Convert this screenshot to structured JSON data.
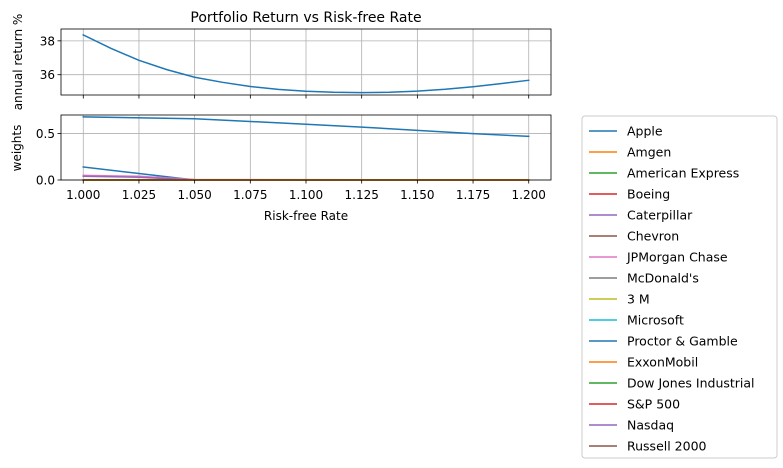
{
  "chart_data": [
    {
      "type": "line",
      "title": "Portfolio Return vs Risk-free Rate",
      "xlabel": "",
      "ylabel": "annual return %",
      "xlim": [
        0.99,
        1.21
      ],
      "ylim": [
        34.8,
        38.7
      ],
      "grid": true,
      "x_ticks": [
        1.0,
        1.025,
        1.05,
        1.075,
        1.1,
        1.125,
        1.15,
        1.175,
        1.2
      ],
      "y_ticks": [
        36,
        38
      ],
      "y_tick_labels": [
        "36",
        "38"
      ],
      "series": [
        {
          "color": "#1f77b4",
          "x": [
            1.0,
            1.0125,
            1.025,
            1.0375,
            1.05,
            1.0625,
            1.075,
            1.0875,
            1.1,
            1.1125,
            1.125,
            1.1375,
            1.15,
            1.1625,
            1.175,
            1.1875,
            1.2
          ],
          "y": [
            38.35,
            37.55,
            36.85,
            36.3,
            35.85,
            35.55,
            35.3,
            35.13,
            35.02,
            34.96,
            34.94,
            34.96,
            35.03,
            35.14,
            35.29,
            35.47,
            35.67
          ]
        }
      ]
    },
    {
      "type": "line",
      "title": "",
      "xlabel": "Risk-free Rate",
      "ylabel": "weights",
      "xlim": [
        0.99,
        1.21
      ],
      "ylim": [
        0.0,
        0.7
      ],
      "grid": true,
      "x_ticks": [
        1.0,
        1.025,
        1.05,
        1.075,
        1.1,
        1.125,
        1.15,
        1.175,
        1.2
      ],
      "x_tick_labels": [
        "1.000",
        "1.025",
        "1.050",
        "1.075",
        "1.100",
        "1.125",
        "1.150",
        "1.175",
        "1.200"
      ],
      "y_ticks": [
        0.0,
        0.5
      ],
      "y_tick_labels": [
        "0.0",
        "0.5"
      ],
      "legend_position": "outside-right",
      "series": [
        {
          "name": "Apple",
          "color": "#1f77b4",
          "x": [
            1.0,
            1.05,
            1.075,
            1.1,
            1.125,
            1.15,
            1.175,
            1.2
          ],
          "y": [
            0.68,
            0.66,
            0.63,
            0.6,
            0.57,
            0.535,
            0.5,
            0.47
          ]
        },
        {
          "name": "Amgen",
          "color": "#ff7f0e",
          "x": [
            1.0,
            1.2
          ],
          "y": [
            0.0,
            0.0
          ]
        },
        {
          "name": "American Express",
          "color": "#2ca02c",
          "x": [
            1.0,
            1.2
          ],
          "y": [
            0.0,
            0.0
          ]
        },
        {
          "name": "Boeing",
          "color": "#d62728",
          "x": [
            1.0,
            1.2
          ],
          "y": [
            0.0,
            0.0
          ]
        },
        {
          "name": "Caterpillar",
          "color": "#9467bd",
          "x": [
            1.0,
            1.025,
            1.05,
            1.2
          ],
          "y": [
            0.04,
            0.03,
            0.0,
            0.0
          ]
        },
        {
          "name": "Chevron",
          "color": "#8c564b",
          "x": [
            1.0,
            1.2
          ],
          "y": [
            0.0,
            0.0
          ]
        },
        {
          "name": "JPMorgan Chase",
          "color": "#e377c2",
          "x": [
            1.0,
            1.025,
            1.05,
            1.2
          ],
          "y": [
            0.05,
            0.04,
            0.005,
            0.0
          ]
        },
        {
          "name": "McDonald's",
          "color": "#7f7f7f",
          "x": [
            1.0,
            1.2
          ],
          "y": [
            0.0,
            0.0
          ]
        },
        {
          "name": "3 M",
          "color": "#bcbd22",
          "x": [
            1.0,
            1.2
          ],
          "y": [
            0.0,
            0.0
          ]
        },
        {
          "name": "Microsoft",
          "color": "#17becf",
          "x": [
            1.0,
            1.2
          ],
          "y": [
            0.0,
            0.0
          ]
        },
        {
          "name": "Proctor & Gamble",
          "color": "#1f77b4",
          "x": [
            1.0,
            1.025,
            1.05,
            1.2
          ],
          "y": [
            0.14,
            0.07,
            0.0,
            0.0
          ]
        },
        {
          "name": "ExxonMobil",
          "color": "#ff7f0e",
          "x": [
            1.0,
            1.2
          ],
          "y": [
            0.0,
            0.0
          ]
        },
        {
          "name": "Dow Jones Industrial",
          "color": "#2ca02c",
          "x": [
            1.0,
            1.2
          ],
          "y": [
            0.0,
            0.0
          ]
        },
        {
          "name": "S&P 500",
          "color": "#d62728",
          "x": [
            1.0,
            1.2
          ],
          "y": [
            0.0,
            0.0
          ]
        },
        {
          "name": "Nasdaq",
          "color": "#9467bd",
          "x": [
            1.0,
            1.2
          ],
          "y": [
            0.0,
            0.0
          ]
        },
        {
          "name": "Russell 2000",
          "color": "#8c564b",
          "x": [
            1.0,
            1.2
          ],
          "y": [
            0.0,
            0.0
          ]
        }
      ]
    }
  ]
}
